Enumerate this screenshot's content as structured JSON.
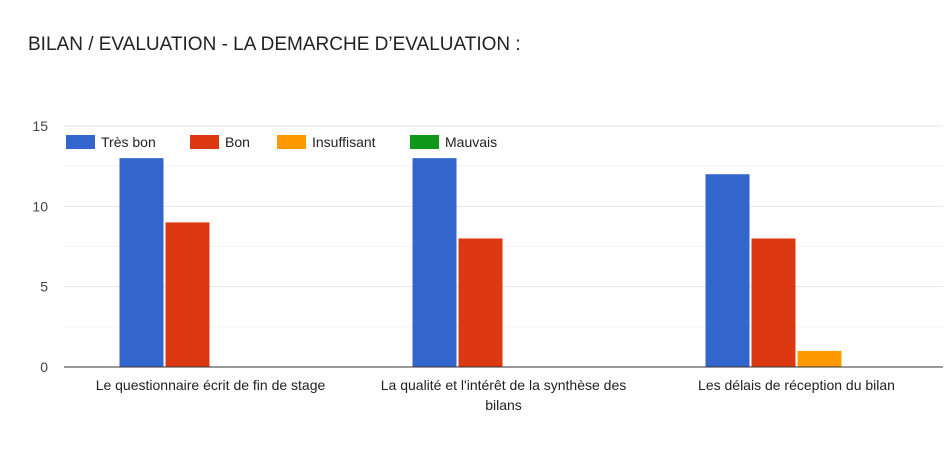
{
  "chart_data": {
    "type": "bar",
    "title": "BILAN / EVALUATION - LA DEMARCHE D’EVALUATION :",
    "categories": [
      [
        "Le questionnaire écrit de fin de stage"
      ],
      [
        "La qualité et l'intérêt de la synthèse des",
        "bilans"
      ],
      [
        "Les délais de réception du bilan"
      ]
    ],
    "series": [
      {
        "name": "Très bon",
        "color": "#3366cc",
        "values": [
          13,
          13,
          12
        ]
      },
      {
        "name": "Bon",
        "color": "#dc3912",
        "values": [
          9,
          8,
          8
        ]
      },
      {
        "name": "Insuffisant",
        "color": "#ff9900",
        "values": [
          0,
          0,
          1
        ]
      },
      {
        "name": "Mauvais",
        "color": "#109618",
        "values": [
          0,
          0,
          0
        ]
      }
    ],
    "ylim": [
      0,
      15
    ],
    "yticks": [
      0,
      5,
      10,
      15
    ],
    "minor_gridlines": true,
    "legend_position": "top-left",
    "gridline_color": "#e5e5e5",
    "baseline_color": "#333333"
  }
}
